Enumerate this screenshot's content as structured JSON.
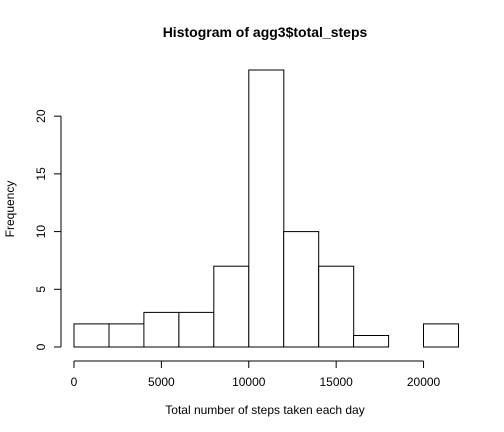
{
  "chart_data": {
    "type": "bar",
    "title": "Histogram of agg3$total_steps",
    "xlabel": "Total number of steps taken each day",
    "ylabel": "Frequency",
    "bins": [
      {
        "from": 0,
        "to": 2000,
        "count": 2
      },
      {
        "from": 2000,
        "to": 4000,
        "count": 2
      },
      {
        "from": 4000,
        "to": 6000,
        "count": 3
      },
      {
        "from": 6000,
        "to": 8000,
        "count": 3
      },
      {
        "from": 8000,
        "to": 10000,
        "count": 7
      },
      {
        "from": 10000,
        "to": 12000,
        "count": 24
      },
      {
        "from": 12000,
        "to": 14000,
        "count": 10
      },
      {
        "from": 14000,
        "to": 16000,
        "count": 7
      },
      {
        "from": 16000,
        "to": 18000,
        "count": 1
      },
      {
        "from": 18000,
        "to": 20000,
        "count": 0
      },
      {
        "from": 20000,
        "to": 22000,
        "count": 2
      }
    ],
    "xlim": [
      0,
      22000
    ],
    "ylim": [
      0,
      24
    ],
    "x_ticks": [
      "0",
      "5000",
      "10000",
      "15000",
      "20000"
    ],
    "y_ticks": [
      "0",
      "5",
      "10",
      "15",
      "20"
    ],
    "grid": false,
    "legend": "none",
    "bar_fill": "#ffffff",
    "bar_stroke": "#000000"
  }
}
